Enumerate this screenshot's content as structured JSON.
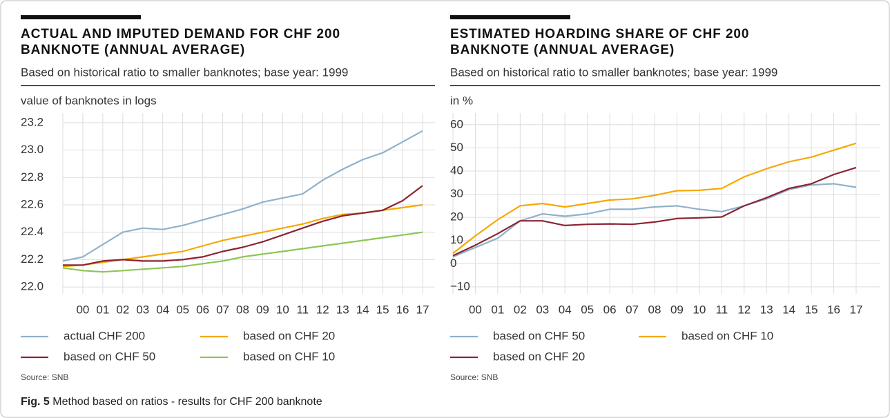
{
  "chart_data": [
    {
      "type": "line",
      "title": [
        "ACTUAL AND IMPUTED DEMAND FOR CHF 200",
        "BANKNOTE (ANNUAL AVERAGE)"
      ],
      "subtitle": "Based on historical ratio to smaller banknotes; base year: 1999",
      "y_label": "value of banknotes in logs",
      "source": "Source: SNB",
      "categories": [
        null,
        "00",
        "01",
        "02",
        "03",
        "04",
        "05",
        "06",
        "07",
        "08",
        "09",
        "10",
        "11",
        "12",
        "13",
        "14",
        "15",
        "16",
        "17"
      ],
      "series": [
        {
          "name": "actual CHF 200",
          "color": "#8fb1cb",
          "values": [
            22.19,
            22.22,
            22.31,
            22.4,
            22.43,
            22.42,
            22.45,
            22.49,
            22.53,
            22.57,
            22.62,
            22.65,
            22.68,
            22.78,
            22.86,
            22.93,
            22.98,
            23.06,
            23.14
          ]
        },
        {
          "name": "based on CHF 20",
          "color": "#f5a800",
          "values": [
            22.15,
            22.16,
            22.18,
            22.2,
            22.22,
            22.24,
            22.26,
            22.3,
            22.34,
            22.37,
            22.4,
            22.43,
            22.46,
            22.5,
            22.53,
            22.54,
            22.56,
            22.58,
            22.6
          ]
        },
        {
          "name": "based on CHF 50",
          "color": "#8b2332",
          "values": [
            22.16,
            22.16,
            22.19,
            22.2,
            22.19,
            22.19,
            22.2,
            22.22,
            22.26,
            22.29,
            22.33,
            22.38,
            22.43,
            22.48,
            22.52,
            22.54,
            22.56,
            22.63,
            22.74
          ]
        },
        {
          "name": "based on CHF 10",
          "color": "#8cc653",
          "values": [
            22.14,
            22.12,
            22.11,
            22.12,
            22.13,
            22.14,
            22.15,
            22.17,
            22.19,
            22.22,
            22.24,
            22.26,
            22.28,
            22.3,
            22.32,
            22.34,
            22.36,
            22.38,
            22.4
          ]
        }
      ],
      "ylim": [
        21.95,
        23.27
      ],
      "yticks": [
        {
          "value": 22,
          "label": "22.0"
        },
        22.2,
        22.4,
        22.6,
        22.8,
        {
          "value": 23,
          "label": "23.0"
        },
        23.2
      ],
      "grid": true
    },
    {
      "type": "line",
      "title": [
        "ESTIMATED HOARDING SHARE OF CHF 200",
        "BANKNOTE (ANNUAL AVERAGE)"
      ],
      "subtitle": "Based on historical ratio to smaller banknotes; base year: 1999",
      "y_label": "in %",
      "source": "Source: SNB",
      "categories": [
        null,
        "00",
        "01",
        "02",
        "03",
        "04",
        "05",
        "06",
        "07",
        "08",
        "09",
        "10",
        "11",
        "12",
        "13",
        "14",
        "15",
        "16",
        "17"
      ],
      "series": [
        {
          "name": "based on CHF 50",
          "color": "#8fb1cb",
          "values": [
            3,
            7,
            11,
            18.5,
            21.5,
            20.5,
            21.5,
            23.5,
            23.5,
            24.5,
            25,
            23.5,
            22.5,
            25,
            28,
            32,
            34,
            34.5,
            33
          ]
        },
        {
          "name": "based on CHF 10",
          "color": "#f5a800",
          "values": [
            4.5,
            12,
            19,
            25,
            26,
            24.5,
            26,
            27.5,
            28,
            29.5,
            31.5,
            31.7,
            32.5,
            37.5,
            41,
            44,
            46,
            49,
            52
          ]
        },
        {
          "name": "based on CHF 20",
          "color": "#8b2332",
          "values": [
            3.5,
            8,
            13,
            18.5,
            18.5,
            16.5,
            17,
            17.2,
            17,
            18,
            19.5,
            19.8,
            20.2,
            25,
            28.5,
            32.5,
            34.5,
            38.5,
            41.5
          ]
        }
      ],
      "ylim": [
        -13,
        65
      ],
      "yticks": [
        {
          "value": -10,
          "label": "−10"
        },
        0,
        10,
        20,
        30,
        40,
        50,
        60
      ],
      "grid": true
    }
  ],
  "caption": {
    "label": "Fig. 5",
    "text": "Method based on ratios - results for CHF 200 banknote"
  }
}
